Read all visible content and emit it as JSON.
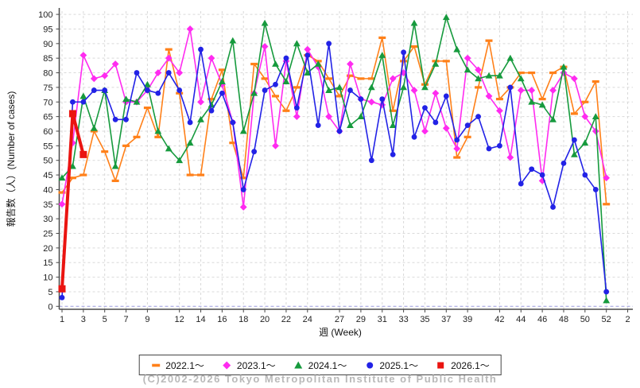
{
  "chart_data": {
    "type": "line",
    "title": "",
    "xlabel": "週 (Week)",
    "ylabel": "報告数（人）(Number of cases)",
    "ylim": [
      0,
      100
    ],
    "ytick_step": 5,
    "x_weeks_total": 54,
    "xtick_labeled_weeks": [
      1,
      3,
      5,
      7,
      9,
      12,
      14,
      16,
      18,
      20,
      22,
      24,
      27,
      29,
      31,
      33,
      35,
      37,
      39,
      42,
      44,
      46,
      48,
      50,
      52
    ],
    "xtick_extra": {
      "week": 54,
      "label": "2"
    },
    "grid": "dashed light gray, vertical at labeled weeks, horizontal every 5; blue dashed zero baseline",
    "legend_position": "bottom center, boxed",
    "series": [
      {
        "name": "2022.1～",
        "color": "#ff8019",
        "marker": "dash",
        "start_week": 1,
        "values": [
          39,
          44,
          45,
          60,
          53,
          43,
          55,
          58,
          68,
          58,
          88,
          73,
          45,
          45,
          71,
          81,
          56,
          44,
          83,
          78,
          72,
          67,
          75,
          86,
          84,
          78,
          72,
          79,
          78,
          78,
          92,
          67,
          84,
          89,
          76,
          84,
          84,
          51,
          58,
          75,
          91,
          71,
          75,
          80,
          80,
          71,
          80,
          82,
          66,
          70,
          77,
          35
        ]
      },
      {
        "name": "2023.1～",
        "color": "#ff2bf0",
        "marker": "diamond",
        "start_week": 1,
        "values": [
          35,
          56,
          86,
          78,
          79,
          83,
          70,
          70,
          74,
          80,
          85,
          80,
          95,
          70,
          85,
          76,
          63,
          34,
          73,
          89,
          55,
          84,
          65,
          88,
          82,
          65,
          60,
          83,
          71,
          70,
          69,
          78,
          80,
          74,
          60,
          73,
          61,
          54,
          85,
          81,
          72,
          67,
          51,
          74,
          74,
          43,
          74,
          80,
          78,
          65,
          60,
          44
        ]
      },
      {
        "name": "2024.1～",
        "color": "#169a3d",
        "marker": "triangle",
        "start_week": 1,
        "values": [
          44,
          48,
          72,
          61,
          74,
          48,
          71,
          70,
          76,
          60,
          54,
          50,
          56,
          64,
          69,
          77,
          91,
          60,
          73,
          97,
          83,
          77,
          90,
          80,
          83,
          74,
          75,
          62,
          65,
          75,
          86,
          62,
          75,
          97,
          75,
          83,
          99,
          88,
          81,
          78,
          79,
          79,
          85,
          78,
          70,
          69,
          64,
          82,
          52,
          56,
          65,
          2
        ]
      },
      {
        "name": "2025.1～",
        "color": "#2222e6",
        "marker": "circle",
        "start_week": 1,
        "values": [
          3,
          70,
          70,
          74,
          74,
          64,
          64,
          80,
          74,
          73,
          80,
          74,
          63,
          88,
          67,
          73,
          63,
          40,
          53,
          74,
          76,
          85,
          68,
          86,
          62,
          90,
          60,
          74,
          71,
          50,
          71,
          52,
          87,
          58,
          68,
          63,
          72,
          57,
          62,
          65,
          54,
          55,
          75,
          42,
          47,
          45,
          34,
          49,
          57,
          45,
          40,
          5
        ]
      },
      {
        "name": "2026.1～",
        "color": "#ea1410",
        "marker": "square",
        "start_week": 1,
        "thick": true,
        "values": [
          6,
          66,
          52
        ]
      }
    ]
  },
  "legend": {
    "items": [
      {
        "label": "2022.1～",
        "color": "#ff8019",
        "marker": "dash"
      },
      {
        "label": "2023.1～",
        "color": "#ff2bf0",
        "marker": "diamond"
      },
      {
        "label": "2024.1～",
        "color": "#169a3d",
        "marker": "triangle"
      },
      {
        "label": "2025.1～",
        "color": "#2222e6",
        "marker": "circle"
      },
      {
        "label": "2026.1～",
        "color": "#ea1410",
        "marker": "square"
      }
    ]
  },
  "footer": {
    "copyright": "(C)2002-2026 Tokyo Metropolitan Institute of Public Health"
  },
  "colors": {
    "grid": "#d9d9d9",
    "zero_baseline": "#9a9ade",
    "axis": "#4a4a4a",
    "tick_text": "#222222",
    "copyright_text": "#b9b9b9"
  }
}
